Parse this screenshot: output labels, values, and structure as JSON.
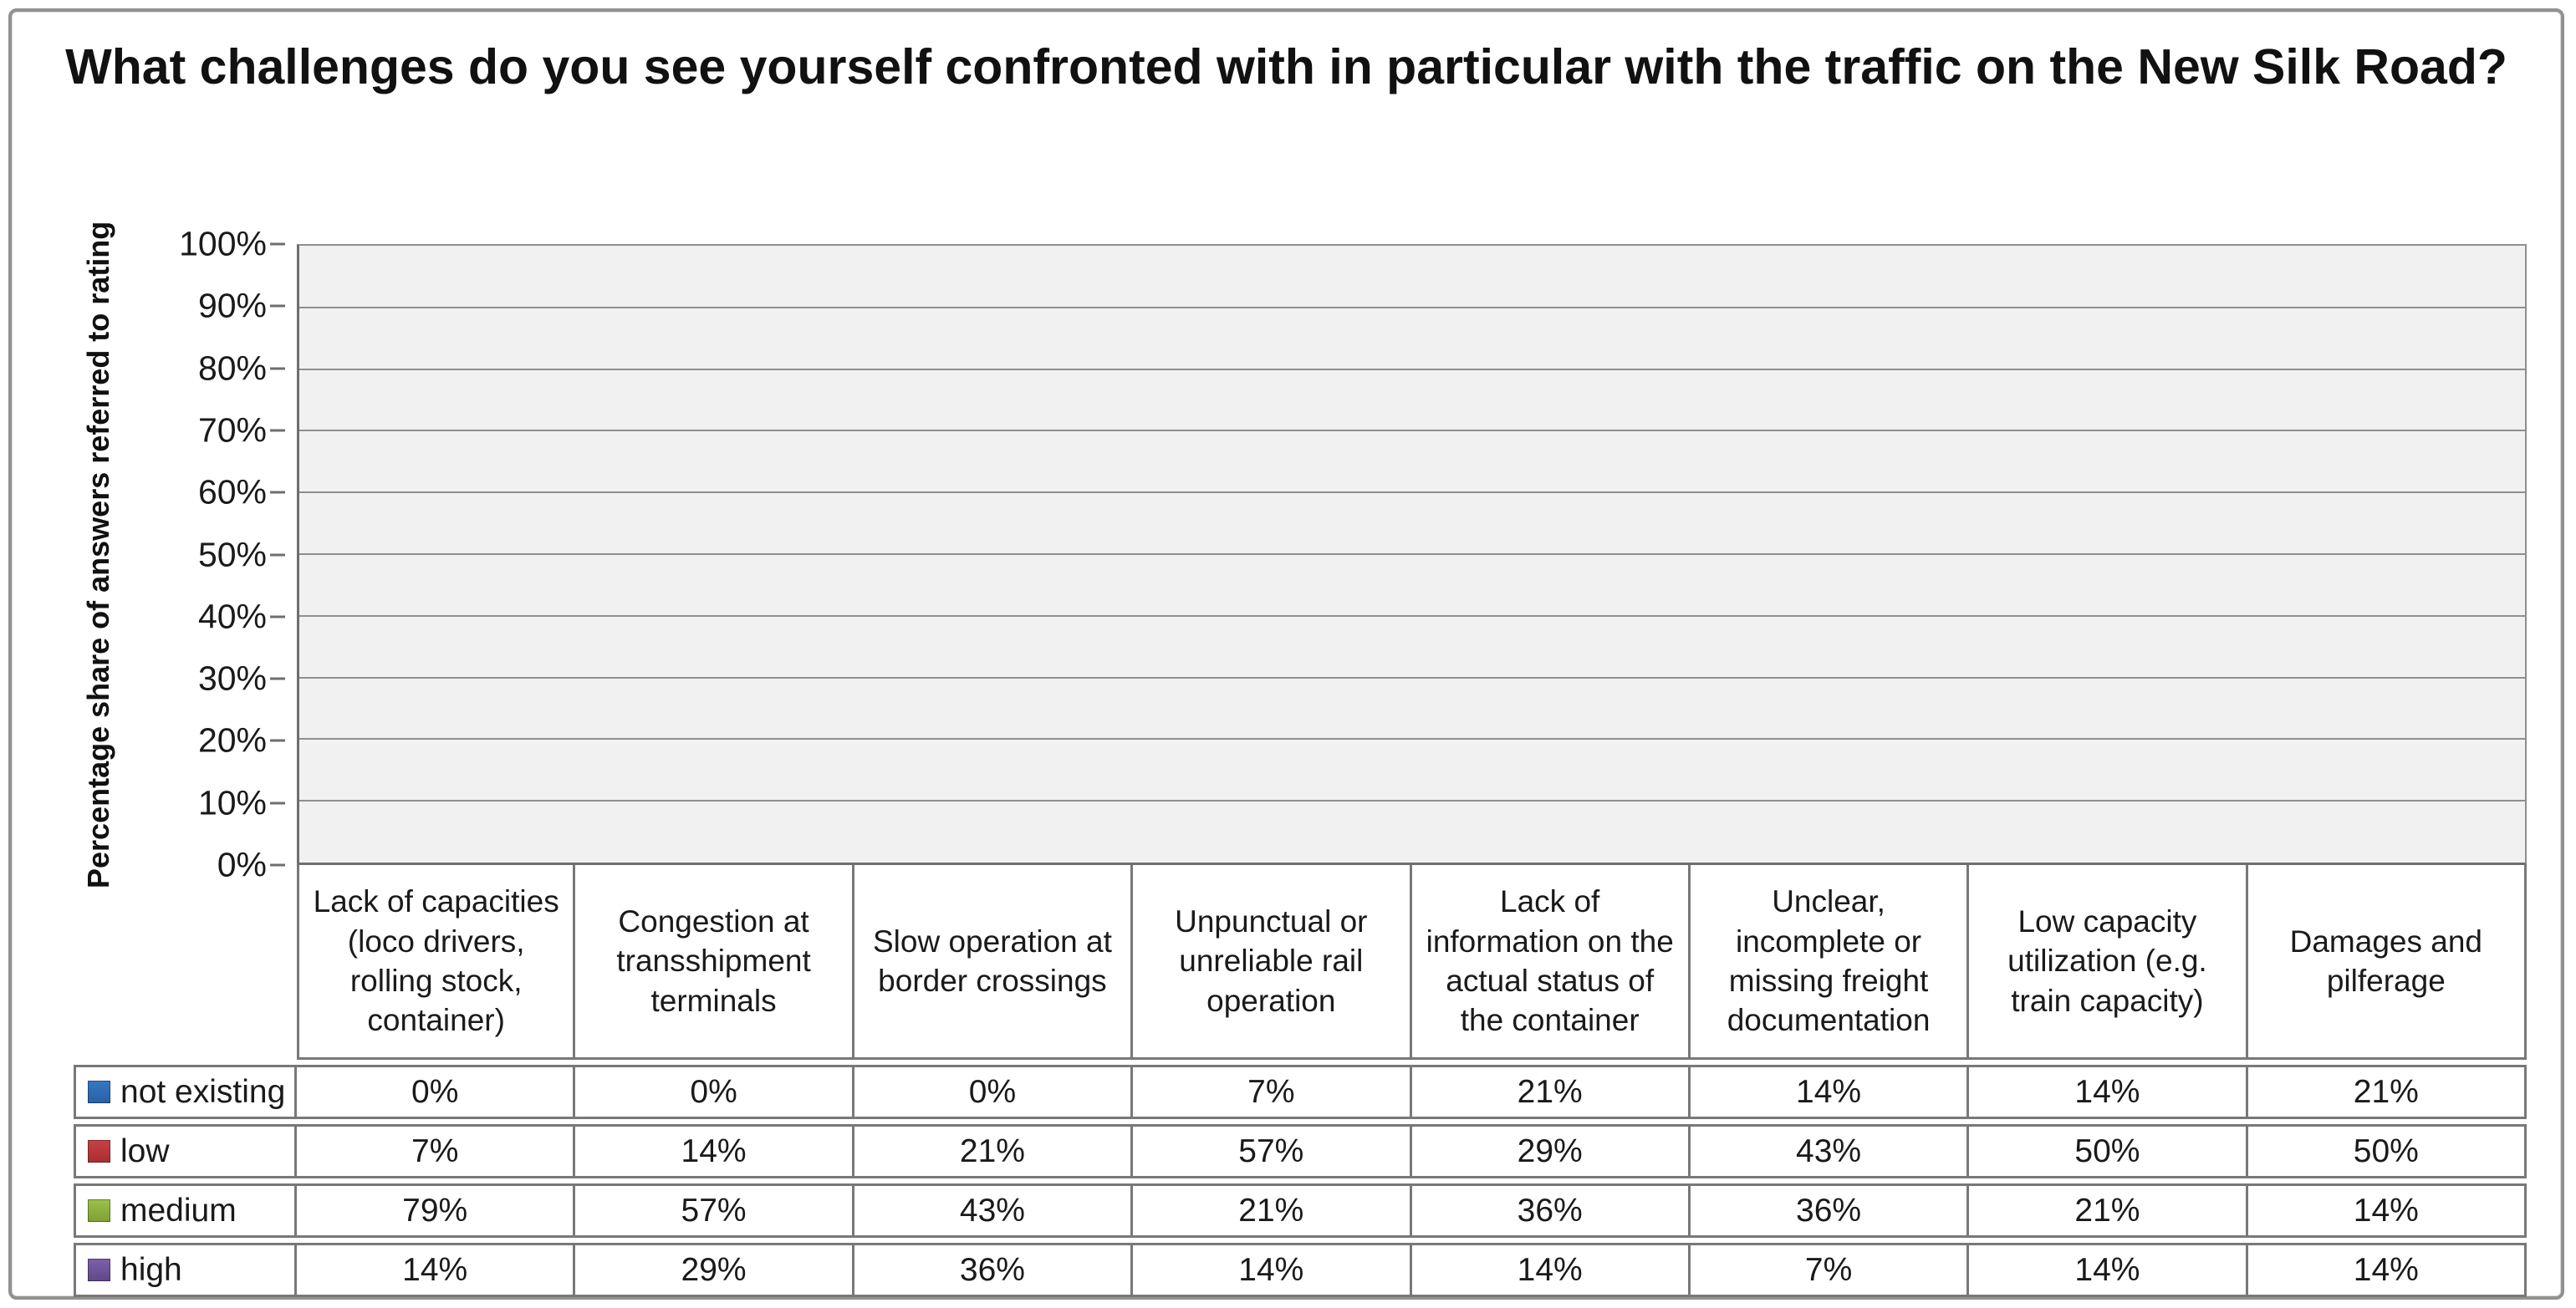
{
  "title": "What challenges do you see yourself confronted with in particular with the traffic on the New Silk Road?",
  "chart_data": {
    "type": "bar",
    "title": "What challenges do you see yourself confronted with in particular with the traffic on the New Silk Road?",
    "xlabel": "",
    "ylabel": "Percentage share of answers referred to rating",
    "ylim": [
      0,
      100
    ],
    "ytick_step": 10,
    "ytick_suffix": "%",
    "grid": true,
    "legend_position": "table-left",
    "plot_bg_color": "#f1f1f1",
    "gridline_color": "#8f8f8f",
    "axis_color": "#6e6e6e",
    "table_border_color": "#787878",
    "categories": [
      "Lack of capacities (loco drivers, rolling stock, container)",
      "Congestion at transshipment terminals",
      "Slow operation at border crossings",
      "Unpunctual or unreliable rail operation",
      "Lack of information on the actual status of the container",
      "Unclear, incomplete or missing freight documentation",
      "Low capacity utilization (e.g. train capacity)",
      "Damages and pilferage"
    ],
    "series": [
      {
        "name": "not existing",
        "color": "#3578c2",
        "color_dark": "#2a5fa6",
        "values": [
          0,
          0,
          0,
          7,
          21,
          14,
          14,
          21
        ]
      },
      {
        "name": "low",
        "color": "#c84144",
        "color_dark": "#a92e31",
        "values": [
          7,
          14,
          21,
          57,
          29,
          43,
          50,
          50
        ]
      },
      {
        "name": "medium",
        "color": "#9cc14b",
        "color_dark": "#7da134",
        "values": [
          79,
          57,
          43,
          21,
          36,
          36,
          21,
          14
        ]
      },
      {
        "name": "high",
        "color": "#7e5fad",
        "color_dark": "#5f4886",
        "values": [
          14,
          29,
          36,
          14,
          14,
          7,
          14,
          14
        ]
      }
    ],
    "value_format": "percent"
  }
}
